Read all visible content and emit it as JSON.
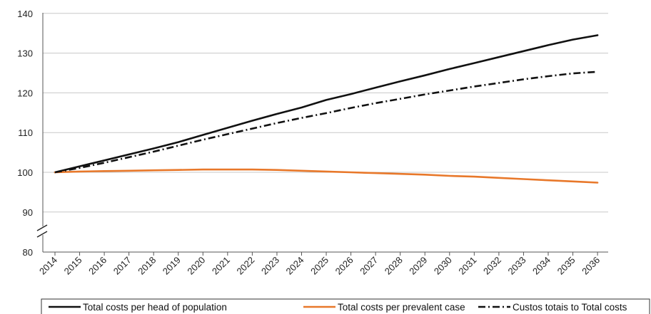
{
  "chart_data": {
    "type": "line",
    "title": "",
    "xlabel": "",
    "ylabel": "",
    "x": [
      "2014",
      "2015",
      "2016",
      "2017",
      "2018",
      "2019",
      "2020",
      "2021",
      "2022",
      "2023",
      "2024",
      "2025",
      "2026",
      "2027",
      "2028",
      "2029",
      "2030",
      "2031",
      "2032",
      "2033",
      "2034",
      "2035",
      "2036"
    ],
    "ylim": [
      80,
      140
    ],
    "y_ticks": [
      80,
      90,
      100,
      110,
      120,
      130,
      140
    ],
    "y_axis_break": true,
    "grid": "horizontal",
    "legend_position": "bottom",
    "series": [
      {
        "name": "Total costs per head of population",
        "color": "#111111",
        "style": "solid",
        "values": [
          100,
          101.5,
          103,
          104.5,
          106,
          107.6,
          109.4,
          111.2,
          113,
          114.7,
          116.3,
          118.2,
          119.7,
          121.3,
          122.9,
          124.4,
          126,
          127.5,
          129,
          130.5,
          132,
          133.4,
          134.5
        ]
      },
      {
        "name": "Total costs per prevalent case",
        "color": "#e8782a",
        "style": "solid",
        "values": [
          100,
          100.2,
          100.3,
          100.4,
          100.5,
          100.6,
          100.7,
          100.7,
          100.7,
          100.6,
          100.4,
          100.2,
          100,
          99.8,
          99.6,
          99.4,
          99.1,
          98.9,
          98.6,
          98.3,
          98,
          97.7,
          97.4
        ]
      },
      {
        "name": "Custos totais to Total costs",
        "color": "#111111",
        "style": "dash-dot",
        "values": [
          100,
          101.1,
          102.4,
          103.8,
          105.2,
          106.7,
          108.2,
          109.6,
          111,
          112.4,
          113.7,
          114.9,
          116.2,
          117.4,
          118.5,
          119.6,
          120.6,
          121.6,
          122.5,
          123.4,
          124.2,
          124.9,
          125.3
        ]
      }
    ]
  }
}
